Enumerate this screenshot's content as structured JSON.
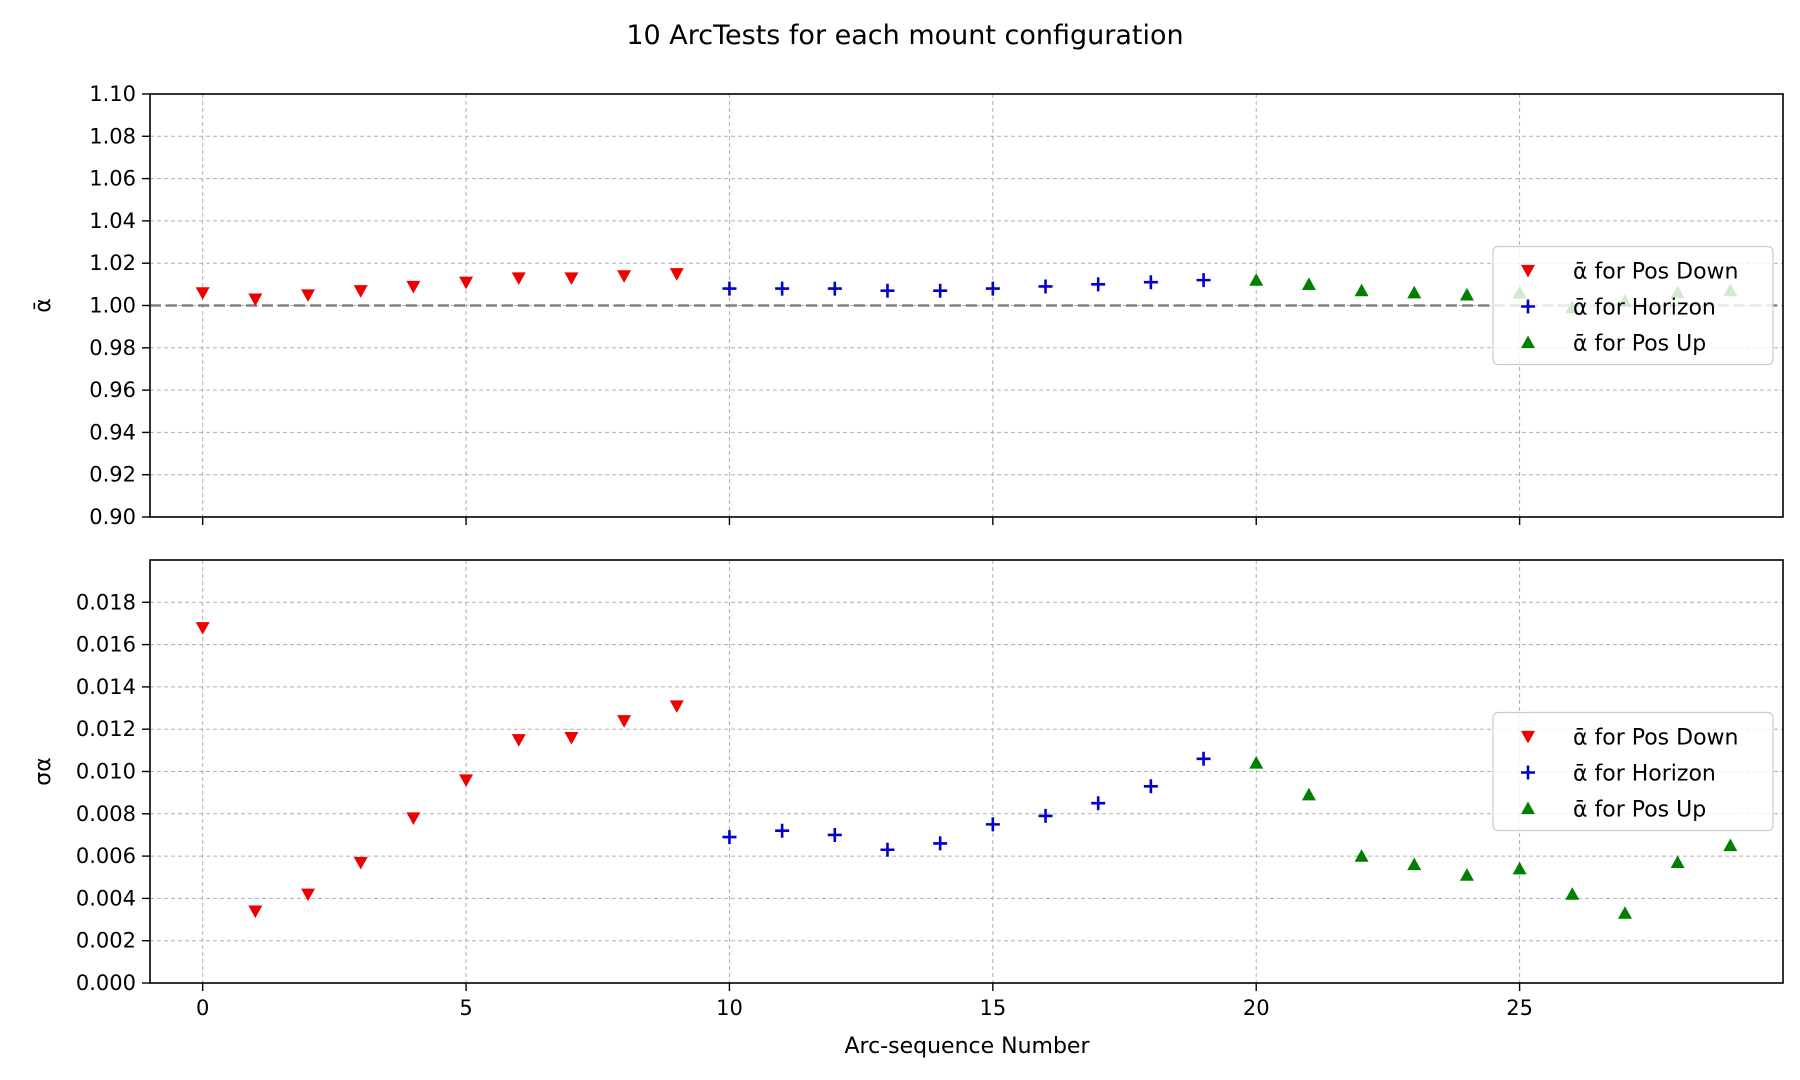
{
  "chart_data": {
    "title": "10 ArcTests for each mount configuration",
    "xlabel": "Arc-sequence Number",
    "xlim": [
      -1,
      30
    ],
    "xticks": [
      0,
      5,
      10,
      15,
      20,
      25
    ],
    "series_styles": [
      {
        "key": "down",
        "name": "ᾱ for Pos Down",
        "color": "#ee0000",
        "marker": "triangle-down"
      },
      {
        "key": "horizon",
        "name": "ᾱ for Horizon",
        "color": "#0000cc",
        "marker": "plus"
      },
      {
        "key": "up",
        "name": "ᾱ for Pos Up",
        "color": "#008000",
        "marker": "triangle-up"
      }
    ],
    "panels": [
      {
        "type": "scatter",
        "ylabel": "ᾱ",
        "ylim": [
          0.9,
          1.1
        ],
        "yticks": [
          0.9,
          0.92,
          0.94,
          0.96,
          0.98,
          1.0,
          1.02,
          1.04,
          1.06,
          1.08,
          1.1
        ],
        "ytick_decimals": 2,
        "reference_line": 1.0,
        "grid": true,
        "legend": "center-right",
        "series": [
          {
            "key": "down",
            "x": [
              0,
              1,
              2,
              3,
              4,
              5,
              6,
              7,
              8,
              9
            ],
            "y": [
              1.006,
              1.003,
              1.005,
              1.007,
              1.009,
              1.011,
              1.013,
              1.013,
              1.014,
              1.015
            ]
          },
          {
            "key": "horizon",
            "x": [
              10,
              11,
              12,
              13,
              14,
              15,
              16,
              17,
              18,
              19
            ],
            "y": [
              1.008,
              1.008,
              1.008,
              1.007,
              1.007,
              1.008,
              1.009,
              1.01,
              1.011,
              1.012
            ]
          },
          {
            "key": "up",
            "x": [
              20,
              21,
              22,
              23,
              24,
              25,
              26,
              27,
              28,
              29
            ],
            "y": [
              1.012,
              1.01,
              1.007,
              1.006,
              1.005,
              1.006,
              0.999,
              1.002,
              1.006,
              1.007
            ]
          }
        ]
      },
      {
        "type": "scatter",
        "ylabel": "σα",
        "ylim": [
          0.0,
          0.02
        ],
        "yticks": [
          0.0,
          0.002,
          0.004,
          0.006,
          0.008,
          0.01,
          0.012,
          0.014,
          0.016,
          0.018
        ],
        "ytick_decimals": 3,
        "grid": true,
        "legend": "center-right",
        "series": [
          {
            "key": "down",
            "x": [
              0,
              1,
              2,
              3,
              4,
              5,
              6,
              7,
              8,
              9
            ],
            "y": [
              0.0168,
              0.0034,
              0.0042,
              0.0057,
              0.0078,
              0.0096,
              0.0115,
              0.0116,
              0.0124,
              0.0131
            ]
          },
          {
            "key": "horizon",
            "x": [
              10,
              11,
              12,
              13,
              14,
              15,
              16,
              17,
              18,
              19
            ],
            "y": [
              0.0069,
              0.0072,
              0.007,
              0.0063,
              0.0066,
              0.0075,
              0.0079,
              0.0085,
              0.0093,
              0.0106
            ]
          },
          {
            "key": "up",
            "x": [
              20,
              21,
              22,
              23,
              24,
              25,
              26,
              27,
              28,
              29
            ],
            "y": [
              0.0104,
              0.0089,
              0.006,
              0.0056,
              0.0051,
              0.0054,
              0.0042,
              0.0033,
              0.0057,
              0.0065
            ]
          }
        ]
      }
    ]
  }
}
